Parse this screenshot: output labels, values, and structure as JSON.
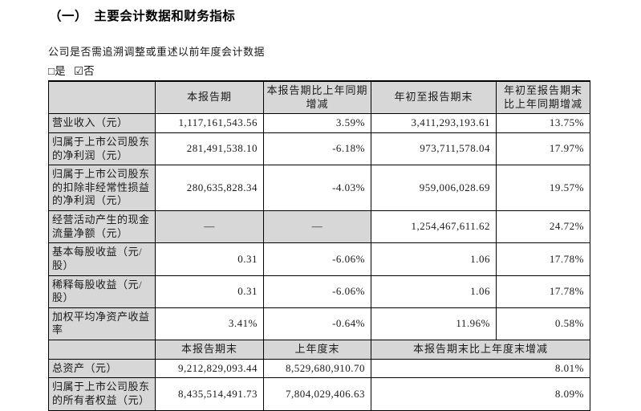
{
  "colors": {
    "page_bg": "#ffffff",
    "header_bg": "#d7d7d7",
    "border": "#000000",
    "text": "#1a1a1a"
  },
  "section": {
    "title": "（一）　主要会计数据和财务指标"
  },
  "restatement": {
    "question": "公司是否需追溯调整或重述以前年度会计数据",
    "yes": {
      "icon": "□",
      "label": "是"
    },
    "no": {
      "icon": "☑",
      "label": "否"
    }
  },
  "table1": {
    "headers": [
      "",
      "本报告期",
      "本报告期比上年同期增减",
      "年初至报告期末",
      "年初至报告期末比上年同期增减"
    ],
    "rows": [
      {
        "label": "营业收入（元）",
        "values": [
          "1,117,161,543.56",
          "3.59%",
          "3,411,293,193.61",
          "13.75%"
        ]
      },
      {
        "label": "归属于上市公司股东的净利润（元）",
        "values": [
          "281,491,538.10",
          "-6.18%",
          "973,711,578.04",
          "17.97%"
        ]
      },
      {
        "label": "归属于上市公司股东的扣除非经常性损益的净利润（元）",
        "values": [
          "280,635,828.34",
          "-4.03%",
          "959,006,028.69",
          "19.57%"
        ]
      },
      {
        "label": "经营活动产生的现金流量净额（元）",
        "values": [
          "—",
          "—",
          "1,254,467,611.62",
          "24.72%"
        ]
      },
      {
        "label": "基本每股收益（元/股）",
        "values": [
          "0.31",
          "-6.06%",
          "1.06",
          "17.78%"
        ]
      },
      {
        "label": "稀释每股收益（元/股）",
        "values": [
          "0.31",
          "-6.06%",
          "1.06",
          "17.78%"
        ]
      },
      {
        "label": "加权平均净资产收益率",
        "values": [
          "3.41%",
          "-0.64%",
          "11.96%",
          "0.58%"
        ]
      }
    ]
  },
  "table2": {
    "headers": [
      "",
      "本报告期末",
      "上年度末",
      "本报告期末比上年度末增减"
    ],
    "rows": [
      {
        "label": "总资产（元）",
        "values": [
          "9,212,829,093.44",
          "8,529,680,910.70",
          "8.01%"
        ]
      },
      {
        "label": "归属于上市公司股东的所有者权益（元）",
        "values": [
          "8,435,514,491.73",
          "7,804,029,406.63",
          "8.09%"
        ]
      }
    ]
  }
}
